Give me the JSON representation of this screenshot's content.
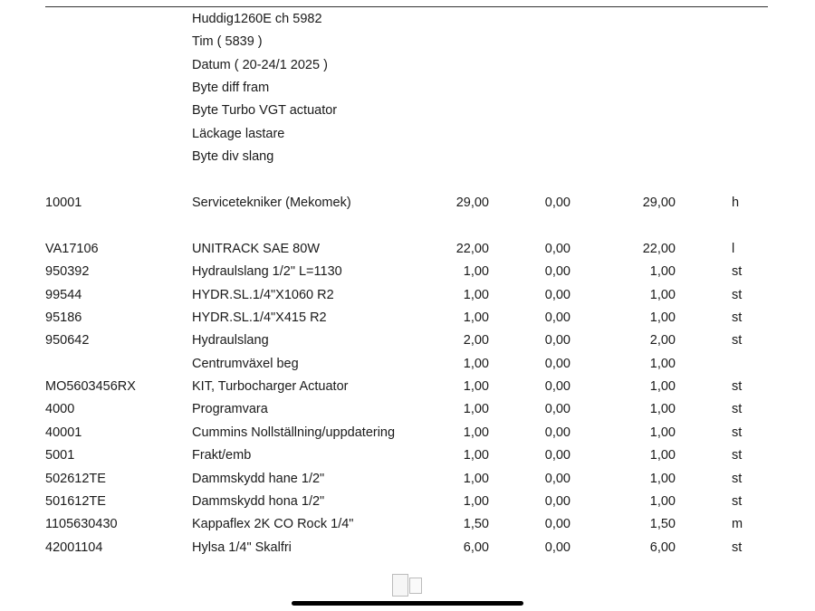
{
  "header_lines": [
    "Huddig1260E ch 5982",
    "Tim ( 5839 )",
    "Datum ( 20-24/1 2025 )",
    "Byte diff fram",
    "Byte Turbo VGT actuator",
    "Läckage lastare",
    "Byte div slang"
  ],
  "labor_rows": [
    {
      "code": "10001",
      "desc": "Servicetekniker (Mekomek)",
      "q1": "29,00",
      "q2": "0,00",
      "q3": "29,00",
      "unit": "h"
    }
  ],
  "part_rows": [
    {
      "code": "VA17106",
      "desc": "UNITRACK SAE 80W",
      "q1": "22,00",
      "q2": "0,00",
      "q3": "22,00",
      "unit": "l"
    },
    {
      "code": "950392",
      "desc": "Hydraulslang 1/2\" L=1130",
      "q1": "1,00",
      "q2": "0,00",
      "q3": "1,00",
      "unit": "st"
    },
    {
      "code": "99544",
      "desc": "HYDR.SL.1/4\"X1060 R2",
      "q1": "1,00",
      "q2": "0,00",
      "q3": "1,00",
      "unit": "st"
    },
    {
      "code": "95186",
      "desc": "HYDR.SL.1/4\"X415 R2",
      "q1": "1,00",
      "q2": "0,00",
      "q3": "1,00",
      "unit": "st"
    },
    {
      "code": "950642",
      "desc": "Hydraulslang",
      "q1": "2,00",
      "q2": "0,00",
      "q3": "2,00",
      "unit": "st"
    },
    {
      "code": "",
      "desc": "Centrumväxel beg",
      "q1": "1,00",
      "q2": "0,00",
      "q3": "1,00",
      "unit": ""
    },
    {
      "code": "MO5603456RX",
      "desc": "KIT, Turbocharger Actuator",
      "q1": "1,00",
      "q2": "0,00",
      "q3": "1,00",
      "unit": "st"
    },
    {
      "code": "4000",
      "desc": "Programvara",
      "q1": "1,00",
      "q2": "0,00",
      "q3": "1,00",
      "unit": "st"
    },
    {
      "code": "40001",
      "desc": "Cummins Nollställning/uppdatering",
      "q1": "1,00",
      "q2": "0,00",
      "q3": "1,00",
      "unit": "st"
    },
    {
      "code": "5001",
      "desc": "Frakt/emb",
      "q1": "1,00",
      "q2": "0,00",
      "q3": "1,00",
      "unit": "st"
    },
    {
      "code": "502612TE",
      "desc": "Dammskydd hane 1/2\"",
      "q1": "1,00",
      "q2": "0,00",
      "q3": "1,00",
      "unit": "st"
    },
    {
      "code": "501612TE",
      "desc": "Dammskydd hona 1/2\"",
      "q1": "1,00",
      "q2": "0,00",
      "q3": "1,00",
      "unit": "st"
    },
    {
      "code": "1105630430",
      "desc": "Kappaflex 2K CO Rock 1/4\"",
      "q1": "1,50",
      "q2": "0,00",
      "q3": "1,50",
      "unit": "m"
    },
    {
      "code": "42001104",
      "desc": "Hylsa 1/4\" Skalfri",
      "q1": "6,00",
      "q2": "0,00",
      "q3": "6,00",
      "unit": "st"
    }
  ]
}
